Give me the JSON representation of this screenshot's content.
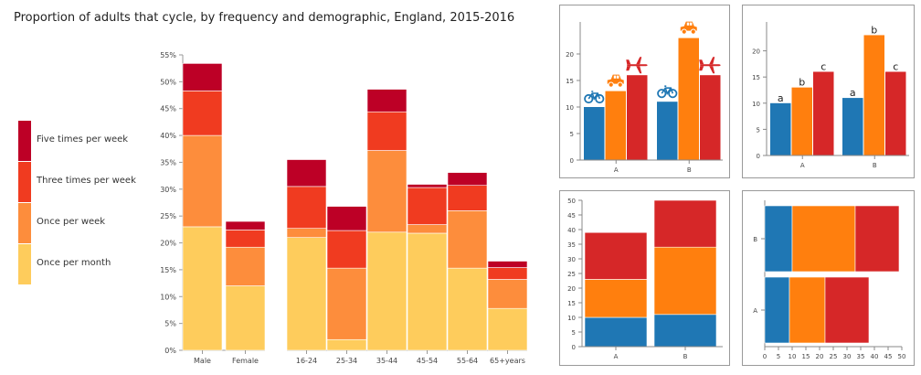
{
  "title": "Proportion of adults that cycle, by frequency and demographic, England, 2015-2016",
  "legend": [
    {
      "label": "Five times per week",
      "color": "#bd0026"
    },
    {
      "label": "Three times per week",
      "color": "#f03b20"
    },
    {
      "label": "Once per week",
      "color": "#fd8d3c"
    },
    {
      "label": "Once per month",
      "color": "#fecc5c"
    }
  ],
  "chart_data": [
    {
      "type": "bar",
      "stacked": true,
      "title": "Proportion of adults that cycle, by frequency and demographic, England, 2015-2016",
      "categories": [
        "Male",
        "Female",
        "16-24",
        "25-34",
        "35-44",
        "45-54",
        "55-64",
        "65+years"
      ],
      "groups": [
        [
          "Male",
          "Female"
        ],
        [
          "16-24",
          "25-34",
          "35-44",
          "45-54",
          "55-64",
          "65+years"
        ]
      ],
      "series": [
        {
          "name": "Once per month",
          "color": "#fecc5c",
          "values": [
            23,
            12,
            21,
            2,
            22,
            21.8,
            15.3,
            7.8
          ]
        },
        {
          "name": "Once per week",
          "color": "#fd8d3c",
          "values": [
            17,
            7.2,
            1.7,
            13.3,
            15.2,
            1.6,
            10.7,
            5.4
          ]
        },
        {
          "name": "Three times per week",
          "color": "#f03b20",
          "values": [
            8.3,
            3.2,
            7.8,
            7,
            7.2,
            6.9,
            4.7,
            2.2
          ]
        },
        {
          "name": "Five times per week",
          "color": "#bd0026",
          "values": [
            5.1,
            1.6,
            5,
            4.5,
            4.2,
            0.6,
            2.4,
            1.2
          ]
        }
      ],
      "ylim": [
        0,
        55
      ],
      "yticks": [
        "0%",
        "5%",
        "10%",
        "15%",
        "20%",
        "25%",
        "30%",
        "35%",
        "40%",
        "45%",
        "50%",
        "55%"
      ],
      "ytick_values": [
        0,
        5,
        10,
        15,
        20,
        25,
        30,
        35,
        40,
        45,
        50,
        55
      ],
      "grid": false,
      "legend_position": "left"
    },
    {
      "type": "bar",
      "title": "",
      "categories": [
        "A",
        "B"
      ],
      "series": [
        {
          "icon": "bicycle-icon",
          "color": "#1f77b4",
          "values": [
            10,
            11
          ]
        },
        {
          "icon": "car-icon",
          "color": "#ff7f0e",
          "values": [
            13,
            23
          ]
        },
        {
          "icon": "airplane-icon",
          "color": "#d62728",
          "values": [
            16,
            16
          ]
        }
      ],
      "ylim": [
        0,
        25
      ],
      "yticks": [
        "0",
        "5",
        "10",
        "15",
        "20"
      ],
      "ytick_values": [
        0,
        5,
        10,
        15,
        20
      ]
    },
    {
      "type": "bar",
      "title": "",
      "categories": [
        "A",
        "B"
      ],
      "series": [
        {
          "label": "a",
          "color": "#1f77b4",
          "values": [
            10,
            11
          ]
        },
        {
          "label": "b",
          "color": "#ff7f0e",
          "values": [
            13,
            23
          ]
        },
        {
          "label": "c",
          "color": "#d62728",
          "values": [
            16,
            16
          ]
        }
      ],
      "ylim": [
        0,
        25
      ],
      "yticks": [
        "0",
        "5",
        "10",
        "15",
        "20"
      ],
      "ytick_values": [
        0,
        5,
        10,
        15,
        20
      ]
    },
    {
      "type": "bar",
      "stacked": true,
      "title": "",
      "categories": [
        "A",
        "B"
      ],
      "series": [
        {
          "color": "#1f77b4",
          "values": [
            10,
            11
          ]
        },
        {
          "color": "#ff7f0e",
          "values": [
            13,
            23
          ]
        },
        {
          "color": "#d62728",
          "values": [
            16,
            16
          ]
        }
      ],
      "ylim": [
        0,
        50
      ],
      "yticks": [
        "0",
        "5",
        "10",
        "15",
        "20",
        "25",
        "30",
        "35",
        "40",
        "45",
        "50"
      ],
      "ytick_values": [
        0,
        5,
        10,
        15,
        20,
        25,
        30,
        35,
        40,
        45,
        50
      ]
    },
    {
      "type": "bar",
      "orientation": "horizontal",
      "stacked": true,
      "title": "",
      "categories": [
        "A",
        "B"
      ],
      "series": [
        {
          "color": "#1f77b4",
          "values": [
            9,
            10
          ]
        },
        {
          "color": "#ff7f0e",
          "values": [
            13,
            23
          ]
        },
        {
          "color": "#d62728",
          "values": [
            16,
            16
          ]
        }
      ],
      "xlim": [
        0,
        50
      ],
      "xticks": [
        "0",
        "5",
        "10",
        "15",
        "20",
        "25",
        "30",
        "35",
        "40",
        "45",
        "50"
      ],
      "xtick_values": [
        0,
        5,
        10,
        15,
        20,
        25,
        30,
        35,
        40,
        45,
        50
      ]
    }
  ]
}
